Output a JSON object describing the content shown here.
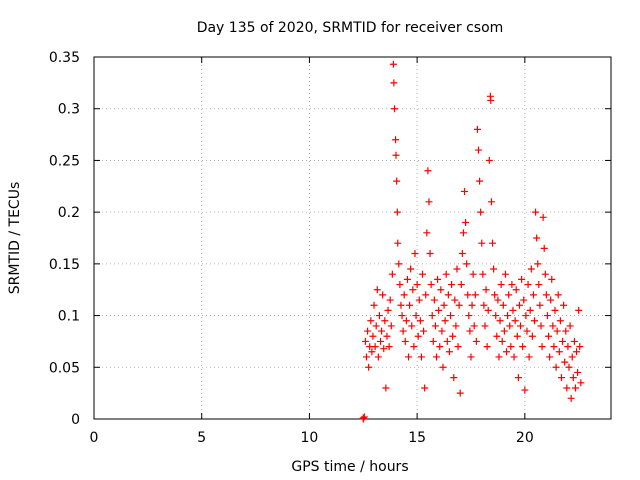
{
  "chart_data": {
    "type": "scatter",
    "title": "Day 135 of 2020, SRMTID for receiver csom",
    "xlabel": "GPS time / hours",
    "ylabel": "SRMTID / TECUs",
    "xlim": [
      0,
      24
    ],
    "ylim": [
      0,
      0.35
    ],
    "xticks": [
      0,
      5,
      10,
      15,
      20
    ],
    "xtick_labels": [
      "0",
      "5",
      "10",
      "15",
      "20"
    ],
    "yticks": [
      0,
      0.05,
      0.1,
      0.15,
      0.2,
      0.25,
      0.3,
      0.35
    ],
    "ytick_labels": [
      "0",
      "0.05",
      "0.1",
      "0.15",
      "0.2",
      "0.25",
      "0.3",
      "0.35"
    ],
    "grid": true,
    "marker": "plus",
    "marker_color": "#ff0000",
    "series": [
      {
        "name": "SRMTID",
        "points": [
          [
            12.5,
            0.0
          ],
          [
            12.5,
            0.001
          ],
          [
            12.55,
            0.002
          ],
          [
            12.6,
            0.075
          ],
          [
            12.65,
            0.06
          ],
          [
            12.7,
            0.085
          ],
          [
            12.75,
            0.05
          ],
          [
            12.8,
            0.07
          ],
          [
            12.85,
            0.095
          ],
          [
            12.9,
            0.065
          ],
          [
            12.95,
            0.08
          ],
          [
            13.0,
            0.11
          ],
          [
            13.05,
            0.07
          ],
          [
            13.1,
            0.09
          ],
          [
            13.15,
            0.125
          ],
          [
            13.2,
            0.06
          ],
          [
            13.25,
            0.1
          ],
          [
            13.3,
            0.075
          ],
          [
            13.35,
            0.085
          ],
          [
            13.4,
            0.12
          ],
          [
            13.45,
            0.068
          ],
          [
            13.5,
            0.095
          ],
          [
            13.55,
            0.03
          ],
          [
            13.6,
            0.08
          ],
          [
            13.65,
            0.105
          ],
          [
            13.7,
            0.07
          ],
          [
            13.75,
            0.115
          ],
          [
            13.8,
            0.09
          ],
          [
            13.85,
            0.14
          ],
          [
            13.9,
            0.343
          ],
          [
            13.92,
            0.325
          ],
          [
            13.95,
            0.3
          ],
          [
            14.0,
            0.27
          ],
          [
            14.02,
            0.255
          ],
          [
            14.05,
            0.23
          ],
          [
            14.08,
            0.2
          ],
          [
            14.1,
            0.17
          ],
          [
            14.15,
            0.15
          ],
          [
            14.2,
            0.13
          ],
          [
            14.25,
            0.11
          ],
          [
            14.3,
            0.1
          ],
          [
            14.35,
            0.085
          ],
          [
            14.4,
            0.12
          ],
          [
            14.45,
            0.075
          ],
          [
            14.5,
            0.095
          ],
          [
            14.55,
            0.135
          ],
          [
            14.6,
            0.06
          ],
          [
            14.65,
            0.11
          ],
          [
            14.7,
            0.145
          ],
          [
            14.75,
            0.09
          ],
          [
            14.8,
            0.125
          ],
          [
            14.85,
            0.07
          ],
          [
            14.9,
            0.16
          ],
          [
            14.95,
            0.1
          ],
          [
            15.0,
            0.13
          ],
          [
            15.05,
            0.08
          ],
          [
            15.1,
            0.115
          ],
          [
            15.15,
            0.095
          ],
          [
            15.2,
            0.06
          ],
          [
            15.25,
            0.14
          ],
          [
            15.3,
            0.085
          ],
          [
            15.35,
            0.03
          ],
          [
            15.4,
            0.12
          ],
          [
            15.45,
            0.18
          ],
          [
            15.5,
            0.24
          ],
          [
            15.55,
            0.21
          ],
          [
            15.6,
            0.16
          ],
          [
            15.65,
            0.13
          ],
          [
            15.7,
            0.1
          ],
          [
            15.75,
            0.075
          ],
          [
            15.8,
            0.115
          ],
          [
            15.85,
            0.09
          ],
          [
            15.9,
            0.06
          ],
          [
            15.95,
            0.135
          ],
          [
            16.0,
            0.105
          ],
          [
            16.05,
            0.07
          ],
          [
            16.1,
            0.125
          ],
          [
            16.15,
            0.085
          ],
          [
            16.2,
            0.05
          ],
          [
            16.25,
            0.11
          ],
          [
            16.3,
            0.095
          ],
          [
            16.35,
            0.14
          ],
          [
            16.4,
            0.075
          ],
          [
            16.45,
            0.12
          ],
          [
            16.5,
            0.065
          ],
          [
            16.55,
            0.1
          ],
          [
            16.6,
            0.13
          ],
          [
            16.65,
            0.08
          ],
          [
            16.7,
            0.04
          ],
          [
            16.75,
            0.115
          ],
          [
            16.8,
            0.09
          ],
          [
            16.85,
            0.145
          ],
          [
            16.9,
            0.07
          ],
          [
            16.95,
            0.11
          ],
          [
            17.0,
            0.025
          ],
          [
            17.05,
            0.13
          ],
          [
            17.1,
            0.16
          ],
          [
            17.15,
            0.18
          ],
          [
            17.2,
            0.22
          ],
          [
            17.25,
            0.19
          ],
          [
            17.3,
            0.15
          ],
          [
            17.35,
            0.12
          ],
          [
            17.4,
            0.1
          ],
          [
            17.45,
            0.085
          ],
          [
            17.5,
            0.06
          ],
          [
            17.55,
            0.11
          ],
          [
            17.6,
            0.14
          ],
          [
            17.65,
            0.09
          ],
          [
            17.7,
            0.12
          ],
          [
            17.75,
            0.075
          ],
          [
            17.8,
            0.28
          ],
          [
            17.85,
            0.26
          ],
          [
            17.9,
            0.23
          ],
          [
            17.95,
            0.2
          ],
          [
            18.0,
            0.17
          ],
          [
            18.05,
            0.14
          ],
          [
            18.1,
            0.11
          ],
          [
            18.15,
            0.09
          ],
          [
            18.2,
            0.125
          ],
          [
            18.25,
            0.07
          ],
          [
            18.3,
            0.105
          ],
          [
            18.35,
            0.25
          ],
          [
            18.4,
            0.312
          ],
          [
            18.42,
            0.308
          ],
          [
            18.45,
            0.21
          ],
          [
            18.5,
            0.17
          ],
          [
            18.55,
            0.145
          ],
          [
            18.6,
            0.12
          ],
          [
            18.65,
            0.1
          ],
          [
            18.7,
            0.08
          ],
          [
            18.75,
            0.115
          ],
          [
            18.8,
            0.06
          ],
          [
            18.85,
            0.095
          ],
          [
            18.9,
            0.13
          ],
          [
            18.95,
            0.075
          ],
          [
            19.0,
            0.11
          ],
          [
            19.05,
            0.085
          ],
          [
            19.1,
            0.14
          ],
          [
            19.15,
            0.065
          ],
          [
            19.2,
            0.1
          ],
          [
            19.25,
            0.12
          ],
          [
            19.3,
            0.09
          ],
          [
            19.35,
            0.07
          ],
          [
            19.4,
            0.13
          ],
          [
            19.45,
            0.105
          ],
          [
            19.5,
            0.06
          ],
          [
            19.55,
            0.095
          ],
          [
            19.6,
            0.125
          ],
          [
            19.65,
            0.08
          ],
          [
            19.7,
            0.04
          ],
          [
            19.75,
            0.11
          ],
          [
            19.8,
            0.09
          ],
          [
            19.85,
            0.135
          ],
          [
            19.9,
            0.07
          ],
          [
            19.95,
            0.115
          ],
          [
            20.0,
            0.028
          ],
          [
            20.05,
            0.1
          ],
          [
            20.1,
            0.085
          ],
          [
            20.15,
            0.13
          ],
          [
            20.2,
            0.06
          ],
          [
            20.25,
            0.105
          ],
          [
            20.3,
            0.145
          ],
          [
            20.35,
            0.08
          ],
          [
            20.4,
            0.12
          ],
          [
            20.45,
            0.095
          ],
          [
            20.5,
            0.2
          ],
          [
            20.55,
            0.175
          ],
          [
            20.6,
            0.15
          ],
          [
            20.65,
            0.13
          ],
          [
            20.7,
            0.11
          ],
          [
            20.75,
            0.09
          ],
          [
            20.8,
            0.07
          ],
          [
            20.85,
            0.195
          ],
          [
            20.9,
            0.165
          ],
          [
            20.95,
            0.14
          ],
          [
            21.0,
            0.12
          ],
          [
            21.05,
            0.1
          ],
          [
            21.1,
            0.08
          ],
          [
            21.15,
            0.06
          ],
          [
            21.2,
            0.115
          ],
          [
            21.25,
            0.135
          ],
          [
            21.3,
            0.09
          ],
          [
            21.35,
            0.07
          ],
          [
            21.4,
            0.105
          ],
          [
            21.45,
            0.05
          ],
          [
            21.5,
            0.085
          ],
          [
            21.55,
            0.12
          ],
          [
            21.6,
            0.065
          ],
          [
            21.65,
            0.095
          ],
          [
            21.7,
            0.04
          ],
          [
            21.75,
            0.075
          ],
          [
            21.8,
            0.11
          ],
          [
            21.85,
            0.055
          ],
          [
            21.9,
            0.085
          ],
          [
            21.95,
            0.03
          ],
          [
            22.0,
            0.07
          ],
          [
            22.05,
            0.05
          ],
          [
            22.1,
            0.09
          ],
          [
            22.15,
            0.02
          ],
          [
            22.2,
            0.06
          ],
          [
            22.25,
            0.04
          ],
          [
            22.3,
            0.075
          ],
          [
            22.35,
            0.03
          ],
          [
            22.4,
            0.065
          ],
          [
            22.45,
            0.045
          ],
          [
            22.5,
            0.105
          ],
          [
            22.55,
            0.07
          ],
          [
            22.6,
            0.035
          ]
        ]
      }
    ]
  }
}
